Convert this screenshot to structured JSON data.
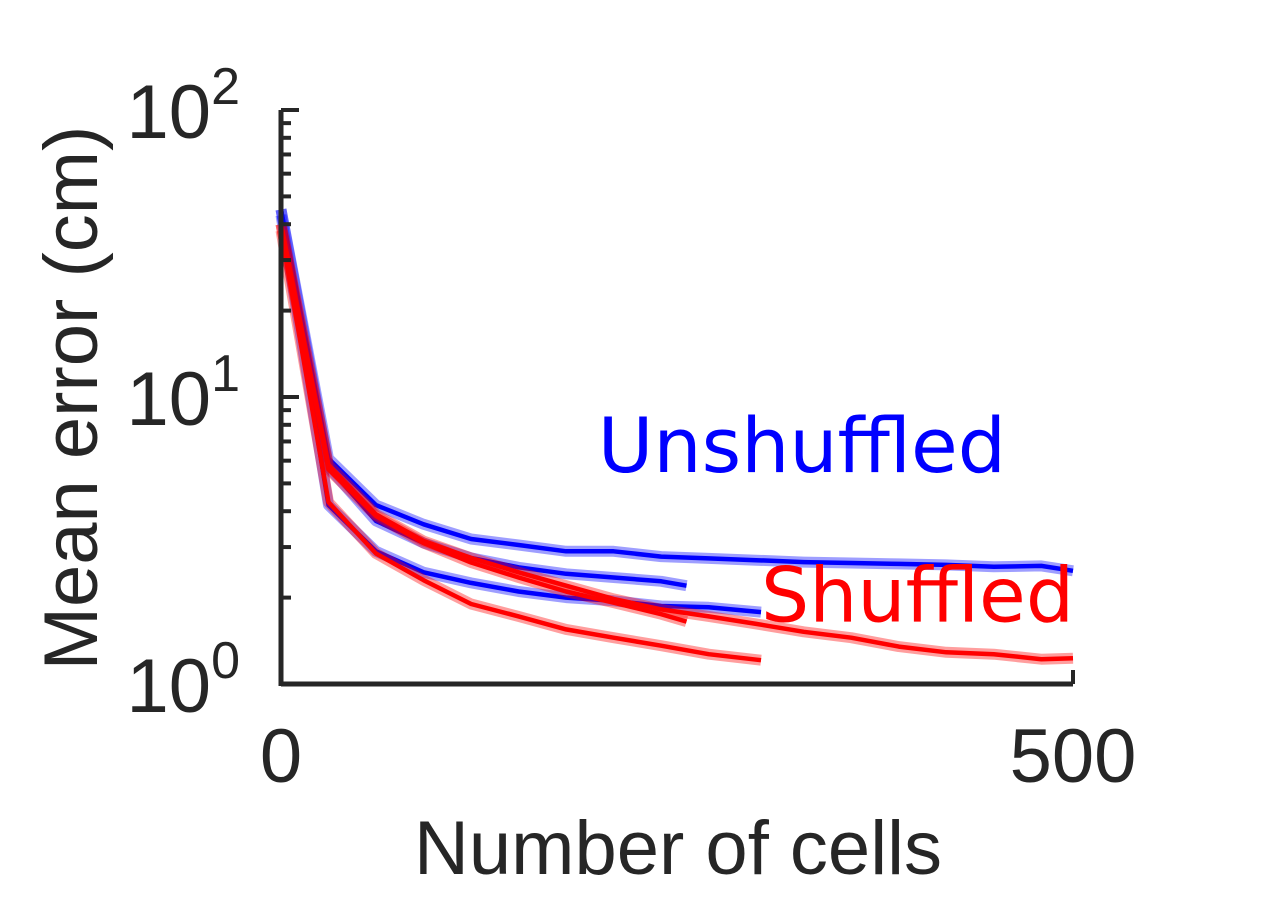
{
  "colors": {
    "axis": "#262626",
    "unshuffled": "#0000ff",
    "shuffled": "#ff0000"
  },
  "chart_data": {
    "type": "line",
    "title": "",
    "xlabel": "Number of cells",
    "ylabel": "Mean error (cm)",
    "xlim": [
      0,
      500
    ],
    "ylim": [
      1,
      100
    ],
    "yscale": "log",
    "grid": false,
    "legend": "none",
    "x_ticks": [
      {
        "value": 0,
        "label": "0"
      },
      {
        "value": 500,
        "label": "500"
      }
    ],
    "y_ticks": [
      {
        "value": 1,
        "base": "10",
        "exp": "0"
      },
      {
        "value": 10,
        "base": "10",
        "exp": "1"
      },
      {
        "value": 100,
        "base": "10",
        "exp": "2"
      }
    ],
    "annotations": [
      {
        "text": "Unshuffled",
        "color": "#0000ff",
        "x": 200,
        "y": 6.8
      },
      {
        "text": "Shuffled",
        "color": "#ff0000",
        "x": 303,
        "y": 2.05
      }
    ],
    "series": [
      {
        "group": "Unshuffled",
        "color": "#0000ff",
        "x": [
          0,
          30,
          60,
          90,
          120,
          150,
          180,
          210,
          240,
          270,
          300,
          330,
          360,
          390,
          420,
          450,
          480,
          500
        ],
        "y": [
          45,
          6.1,
          4.2,
          3.6,
          3.2,
          3.05,
          2.9,
          2.9,
          2.78,
          2.74,
          2.7,
          2.66,
          2.64,
          2.62,
          2.6,
          2.56,
          2.58,
          2.48
        ]
      },
      {
        "group": "Unshuffled",
        "color": "#0000ff",
        "x": [
          0,
          30,
          60,
          90,
          120,
          150,
          180,
          210,
          240,
          256
        ],
        "y": [
          45,
          5.7,
          3.7,
          3.1,
          2.75,
          2.55,
          2.42,
          2.35,
          2.28,
          2.2
        ]
      },
      {
        "group": "Unshuffled",
        "color": "#0000ff",
        "x": [
          0,
          30,
          60,
          90,
          120,
          150,
          180,
          210,
          240,
          270,
          303
        ],
        "y": [
          43,
          4.2,
          2.9,
          2.45,
          2.25,
          2.1,
          2.0,
          1.95,
          1.87,
          1.85,
          1.78
        ]
      },
      {
        "group": "Shuffled",
        "color": "#ff0000",
        "x": [
          0,
          30,
          60,
          90,
          120,
          150,
          180,
          210,
          240,
          270,
          300,
          330,
          360,
          390,
          420,
          450,
          480,
          500
        ],
        "y": [
          40,
          5.8,
          3.9,
          3.15,
          2.75,
          2.45,
          2.2,
          1.98,
          1.82,
          1.72,
          1.62,
          1.52,
          1.45,
          1.35,
          1.29,
          1.27,
          1.22,
          1.23
        ]
      },
      {
        "group": "Shuffled",
        "color": "#ff0000",
        "x": [
          0,
          30,
          60,
          90,
          120,
          150,
          180,
          210,
          240,
          256
        ],
        "y": [
          40,
          5.6,
          3.85,
          3.1,
          2.65,
          2.35,
          2.1,
          1.92,
          1.75,
          1.65
        ]
      },
      {
        "group": "Shuffled",
        "color": "#ff0000",
        "x": [
          0,
          30,
          60,
          90,
          120,
          150,
          180,
          210,
          240,
          270,
          303
        ],
        "y": [
          38,
          4.3,
          2.85,
          2.3,
          1.9,
          1.72,
          1.55,
          1.45,
          1.36,
          1.27,
          1.21
        ]
      }
    ]
  }
}
